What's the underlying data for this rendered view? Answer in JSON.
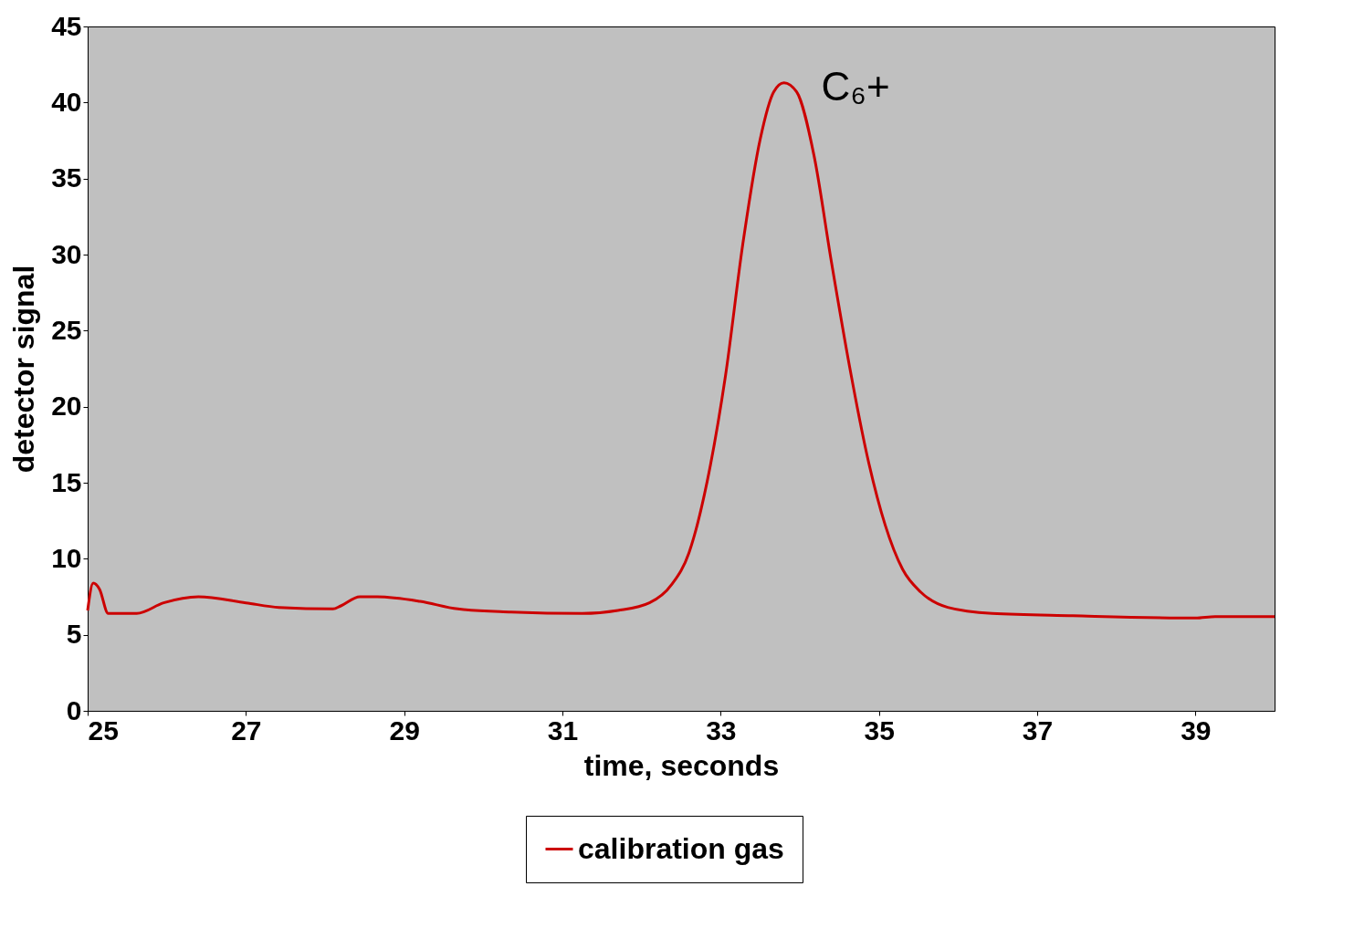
{
  "chart_data": {
    "type": "line",
    "xlabel": "time, seconds",
    "ylabel": "detector signal",
    "xlim": [
      25,
      40
    ],
    "xticks": [
      25,
      27,
      29,
      31,
      33,
      35,
      37,
      39
    ],
    "ylim": [
      0,
      45
    ],
    "yticks": [
      0,
      5,
      10,
      15,
      20,
      25,
      30,
      35,
      40,
      45
    ],
    "legend": "bottom",
    "line_style": "solid",
    "series": [
      {
        "name": "calibration gas",
        "color": "#cc0000",
        "x": [
          25.0,
          25.07,
          25.15,
          25.26,
          25.4,
          25.62,
          25.96,
          26.4,
          27.0,
          27.42,
          28.1,
          28.2,
          28.44,
          28.66,
          29.2,
          29.68,
          30.35,
          31.25,
          31.7,
          32.1,
          32.38,
          32.6,
          32.83,
          33.06,
          33.28,
          33.5,
          33.67,
          33.8,
          33.96,
          34.18,
          34.4,
          34.63,
          34.85,
          35.08,
          35.3,
          35.53,
          35.87,
          36.43,
          37.45,
          39.0,
          39.25,
          40.0
        ],
        "values": [
          6.6,
          8.4,
          8.0,
          6.4,
          6.4,
          6.4,
          7.1,
          7.5,
          7.1,
          6.8,
          6.7,
          6.9,
          7.5,
          7.5,
          7.2,
          6.7,
          6.5,
          6.4,
          6.6,
          7.1,
          8.3,
          10.4,
          15.1,
          22.0,
          30.7,
          37.6,
          40.7,
          41.3,
          40.7,
          36.5,
          29.5,
          22.6,
          16.8,
          12.2,
          9.3,
          7.8,
          6.8,
          6.4,
          6.25,
          6.1,
          6.2,
          6.2
        ]
      }
    ],
    "annotations": [
      "C₆+"
    ]
  }
}
